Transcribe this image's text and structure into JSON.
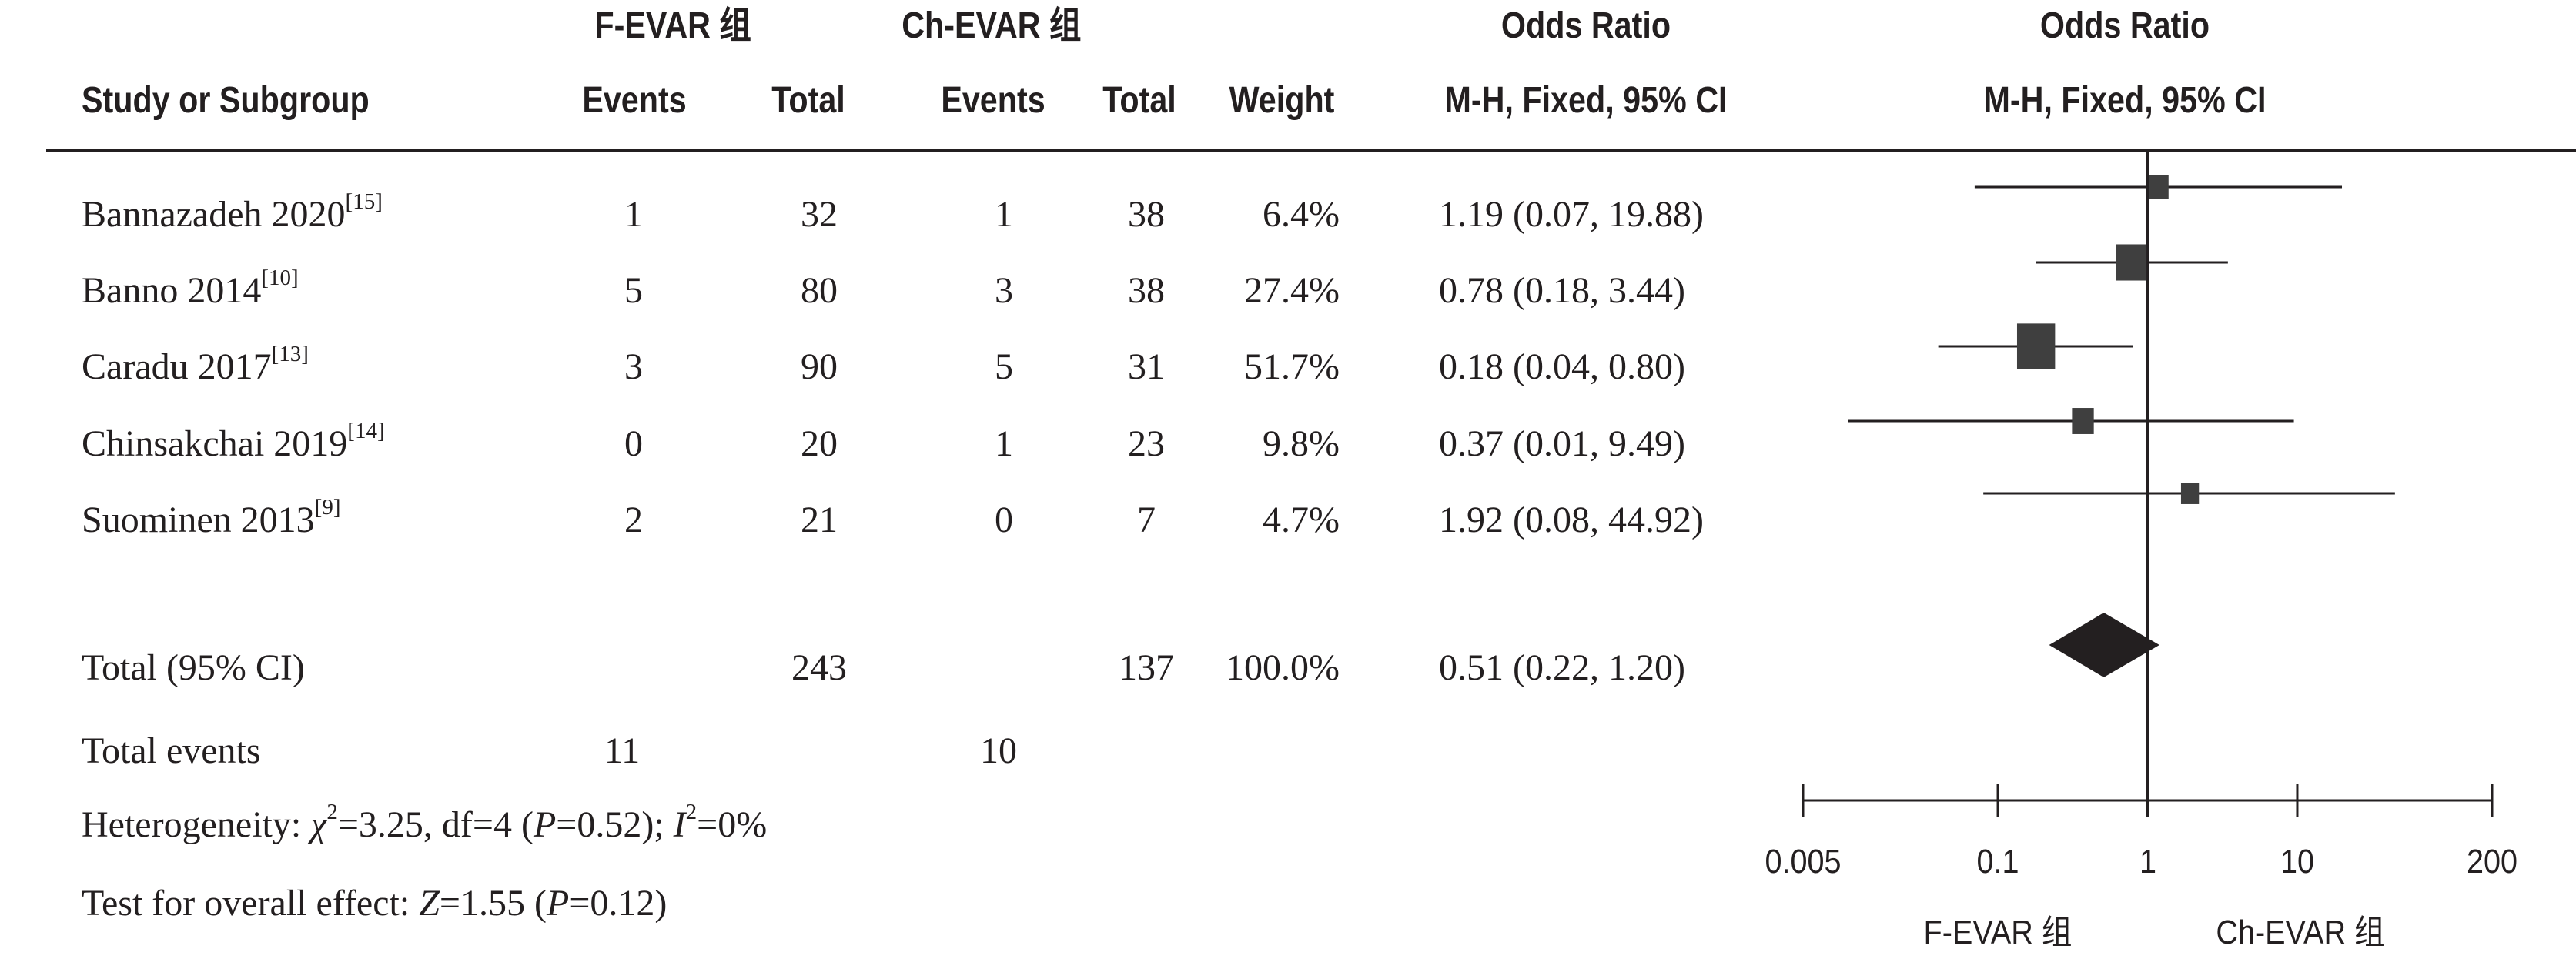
{
  "chart_data": {
    "type": "forest",
    "title": "",
    "group_labels": {
      "experimental": "F-EVAR 组",
      "control": "Ch-EVAR 组"
    },
    "columns": {
      "study": "Study or Subgroup",
      "events_exp": "Events",
      "total_exp": "Total",
      "events_ctrl": "Events",
      "total_ctrl": "Total",
      "weight": "Weight",
      "effect_title": "Odds Ratio",
      "effect_method": "M-H, Fixed, 95% CI",
      "plot_title": "Odds Ratio",
      "plot_method": "M-H, Fixed, 95% CI"
    },
    "studies": [
      {
        "name": "Bannazadeh 2020",
        "ref": "[15]",
        "events_exp": "1",
        "total_exp": "32",
        "events_ctrl": "1",
        "total_ctrl": "38",
        "weight": "6.4%",
        "or": 1.19,
        "lo": 0.07,
        "hi": 19.88,
        "ci_text": "1.19 (0.07, 19.88)"
      },
      {
        "name": "Banno 2014",
        "ref": "[10]",
        "events_exp": "5",
        "total_exp": "80",
        "events_ctrl": "3",
        "total_ctrl": "38",
        "weight": "27.4%",
        "or": 0.78,
        "lo": 0.18,
        "hi": 3.44,
        "ci_text": "0.78 (0.18, 3.44)"
      },
      {
        "name": "Caradu 2017",
        "ref": "[13]",
        "events_exp": "3",
        "total_exp": "90",
        "events_ctrl": "5",
        "total_ctrl": "31",
        "weight": "51.7%",
        "or": 0.18,
        "lo": 0.04,
        "hi": 0.8,
        "ci_text": "0.18 (0.04, 0.80)"
      },
      {
        "name": "Chinsakchai 2019",
        "ref": "[14]",
        "events_exp": "0",
        "total_exp": "20",
        "events_ctrl": "1",
        "total_ctrl": "23",
        "weight": "9.8%",
        "or": 0.37,
        "lo": 0.01,
        "hi": 9.49,
        "ci_text": "0.37 (0.01, 9.49)"
      },
      {
        "name": "Suominen 2013",
        "ref": "[9]",
        "events_exp": "2",
        "total_exp": "21",
        "events_ctrl": "0",
        "total_ctrl": "7",
        "weight": "4.7%",
        "or": 1.92,
        "lo": 0.08,
        "hi": 44.92,
        "ci_text": "1.92 (0.08, 44.92)"
      }
    ],
    "total": {
      "label": "Total (95% CI)",
      "total_exp": "243",
      "total_ctrl": "137",
      "weight": "100.0%",
      "or": 0.51,
      "lo": 0.22,
      "hi": 1.2,
      "ci_text": "0.51 (0.22, 1.20)"
    },
    "total_events": {
      "label": "Total events",
      "exp": "11",
      "ctrl": "10"
    },
    "heterogeneity": {
      "prefix": "Heterogeneity: ",
      "chi": "χ",
      "chi_sup": "2",
      "chi_val": "=3.25, df=4 (",
      "p": "P",
      "p_val": "=0.52); ",
      "i": "I",
      "i_sup": "2",
      "i_val": "=0%"
    },
    "overall_effect": {
      "prefix": "Test for overall effect: ",
      "z": "Z",
      "z_val": "=1.55 (",
      "p": "P",
      "p_val": "=0.12)"
    },
    "x_axis": {
      "scale": "log",
      "ticks": [
        0.005,
        0.1,
        1,
        10,
        200
      ],
      "tick_labels": [
        "0.005",
        "0.1",
        "1",
        "10",
        "200"
      ],
      "null_value": 1
    },
    "favours": {
      "left": "F-EVAR 组",
      "right": "Ch-EVAR 组"
    },
    "colors": {
      "marker": "#3f3f3f",
      "diamond": "#231f20",
      "line": "#231f20"
    }
  }
}
